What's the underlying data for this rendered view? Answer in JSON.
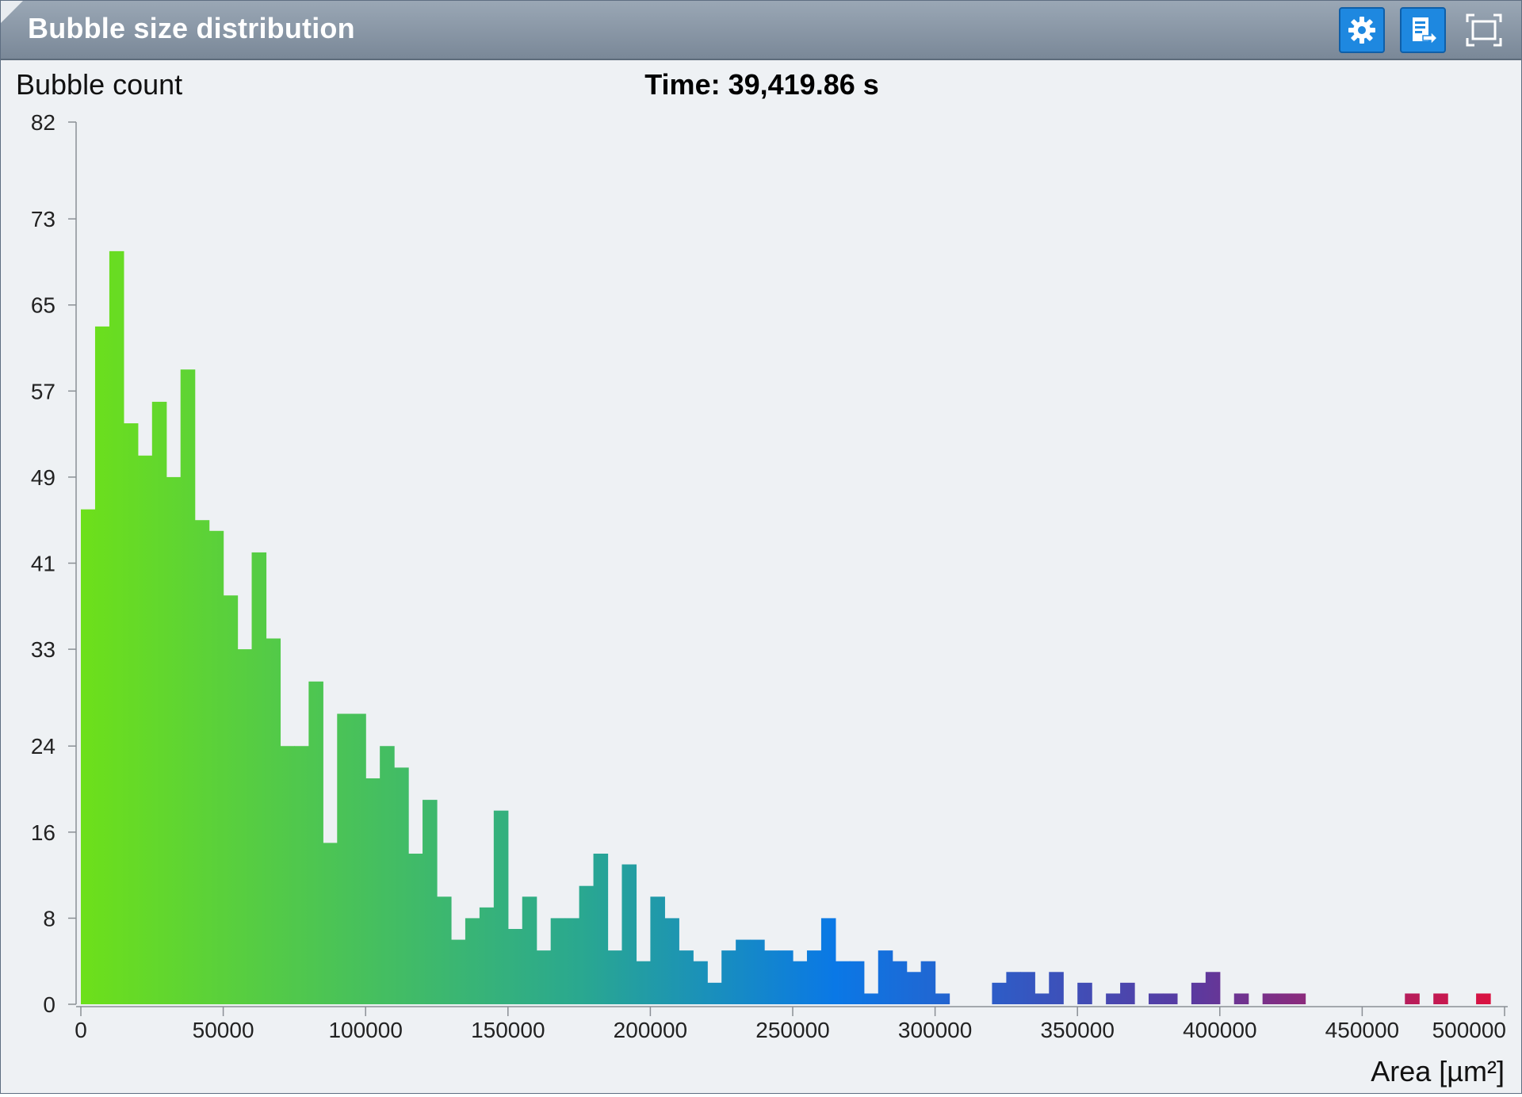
{
  "window": {
    "title": "Bubble size distribution",
    "buttons": [
      {
        "name": "settings",
        "icon": "gear-icon"
      },
      {
        "name": "export",
        "icon": "export-report-icon"
      },
      {
        "name": "maximize",
        "icon": "maximize-icon"
      }
    ],
    "accent": "#1e88e0"
  },
  "chart_data": {
    "type": "bar",
    "title": "Time: 39,419.86 s",
    "ylabel": "Bubble count",
    "xlabel": "Area [µm²]",
    "xlim": [
      0,
      500000
    ],
    "ylim": [
      0,
      82
    ],
    "bin_width": 5000,
    "yticks": [
      0,
      8,
      16,
      24,
      33,
      41,
      49,
      57,
      65,
      73,
      82
    ],
    "xticks": [
      0,
      50000,
      100000,
      150000,
      200000,
      250000,
      300000,
      350000,
      400000,
      450000,
      500000
    ],
    "grid": false,
    "color_gradient": [
      "#6de01a",
      "#2aa88f",
      "#0a78e6",
      "#5a3aa0",
      "#e0103c"
    ],
    "values": [
      46,
      63,
      70,
      54,
      51,
      56,
      49,
      59,
      45,
      44,
      38,
      33,
      42,
      34,
      24,
      24,
      30,
      15,
      27,
      27,
      21,
      24,
      22,
      14,
      19,
      10,
      6,
      8,
      9,
      18,
      7,
      10,
      5,
      8,
      8,
      11,
      14,
      5,
      13,
      4,
      10,
      8,
      5,
      4,
      2,
      5,
      6,
      6,
      5,
      5,
      4,
      5,
      8,
      4,
      4,
      1,
      5,
      4,
      3,
      4,
      1,
      0,
      0,
      0,
      2,
      3,
      3,
      1,
      3,
      0,
      2,
      0,
      1,
      2,
      0,
      1,
      1,
      0,
      2,
      3,
      0,
      1,
      0,
      1,
      1,
      1,
      0,
      0,
      0,
      0,
      0,
      0,
      0,
      1,
      0,
      1,
      0,
      0,
      1,
      0
    ]
  }
}
